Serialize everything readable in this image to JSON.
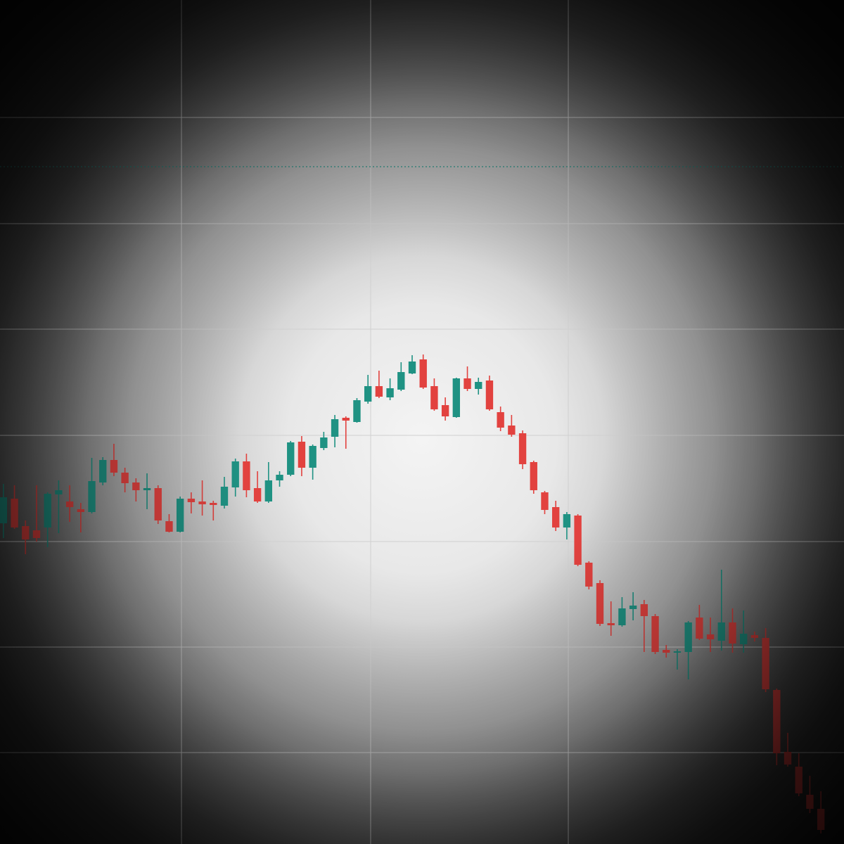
{
  "chart_data": {
    "type": "candlestick",
    "categories": [
      null,
      null,
      null,
      null,
      null,
      null,
      null,
      null,
      null,
      null,
      null,
      null,
      null,
      null,
      null,
      null,
      null,
      null,
      null,
      null,
      null,
      null,
      null,
      null,
      null,
      null,
      null,
      null,
      null,
      null,
      null,
      null,
      null,
      null,
      null,
      null,
      null,
      null,
      null,
      null,
      null,
      null,
      null,
      null,
      null,
      null,
      null,
      null,
      null,
      null,
      null,
      null,
      null,
      null,
      null,
      null,
      null,
      null,
      null,
      null,
      null,
      null,
      null,
      null,
      null,
      null,
      null,
      null,
      null,
      null,
      null,
      null,
      null,
      null,
      null
    ],
    "open": [
      456,
      491,
      452,
      446,
      450,
      497,
      487,
      476,
      472,
      514,
      546,
      528,
      514,
      503,
      506,
      459,
      444,
      491,
      487,
      485,
      481,
      507,
      544,
      506,
      487,
      517,
      525,
      572,
      535,
      563,
      579,
      606,
      600,
      629,
      651,
      635,
      646,
      669,
      689,
      651,
      624,
      607,
      662,
      647,
      659,
      614,
      595,
      584,
      543,
      500,
      479,
      450,
      467,
      400,
      371,
      314,
      311,
      334,
      341,
      324,
      276,
      272,
      273,
      322,
      298,
      289,
      315,
      284,
      297,
      293,
      219,
      131,
      110,
      70,
      50
    ],
    "high": [
      512,
      510,
      460,
      510,
      500,
      517,
      510,
      485,
      549,
      550,
      569,
      535,
      520,
      527,
      510,
      469,
      494,
      500,
      517,
      488,
      522,
      548,
      555,
      530,
      543,
      530,
      573,
      580,
      568,
      586,
      610,
      608,
      634,
      667,
      673,
      662,
      685,
      695,
      696,
      662,
      635,
      663,
      679,
      663,
      666,
      622,
      610,
      588,
      545,
      502,
      488,
      472,
      469,
      402,
      375,
      345,
      351,
      358,
      347,
      327,
      283,
      277,
      317,
      340,
      322,
      390,
      335,
      332,
      302,
      307,
      221,
      158,
      129,
      97,
      75
    ],
    "low": [
      435,
      448,
      412,
      430,
      422,
      442,
      458,
      443,
      470,
      510,
      523,
      500,
      487,
      476,
      455,
      443,
      443,
      470,
      467,
      460,
      477,
      494,
      493,
      485,
      485,
      508,
      523,
      523,
      518,
      560,
      564,
      562,
      599,
      626,
      634,
      631,
      644,
      668,
      647,
      616,
      602,
      606,
      644,
      639,
      616,
      587,
      579,
      533,
      498,
      469,
      445,
      433,
      395,
      362,
      310,
      296,
      309,
      318,
      273,
      270,
      265,
      248,
      234,
      290,
      273,
      275,
      272,
      272,
      288,
      216,
      112,
      110,
      68,
      44,
      15
    ],
    "close": [
      493,
      450,
      433,
      435,
      498,
      503,
      479,
      472,
      516,
      546,
      528,
      513,
      503,
      506,
      460,
      444,
      491,
      486,
      483,
      482,
      508,
      544,
      503,
      487,
      517,
      525,
      571,
      535,
      566,
      578,
      604,
      602,
      631,
      651,
      636,
      648,
      671,
      686,
      649,
      618,
      608,
      662,
      647,
      657,
      618,
      592,
      582,
      540,
      503,
      475,
      450,
      469,
      397,
      366,
      313,
      311,
      335,
      339,
      324,
      273,
      272,
      274,
      315,
      292,
      291,
      315,
      285,
      299,
      293,
      220,
      129,
      113,
      72,
      50,
      20
    ],
    "up_color": "#1f9283",
    "down_color": "#e2423f",
    "price_line": {
      "value": 963,
      "color": "#2a8f84"
    },
    "ylim": [
      0,
      1200
    ],
    "yticks": [
      130,
      280,
      430,
      581,
      732,
      882,
      1033
    ],
    "grid": true
  }
}
